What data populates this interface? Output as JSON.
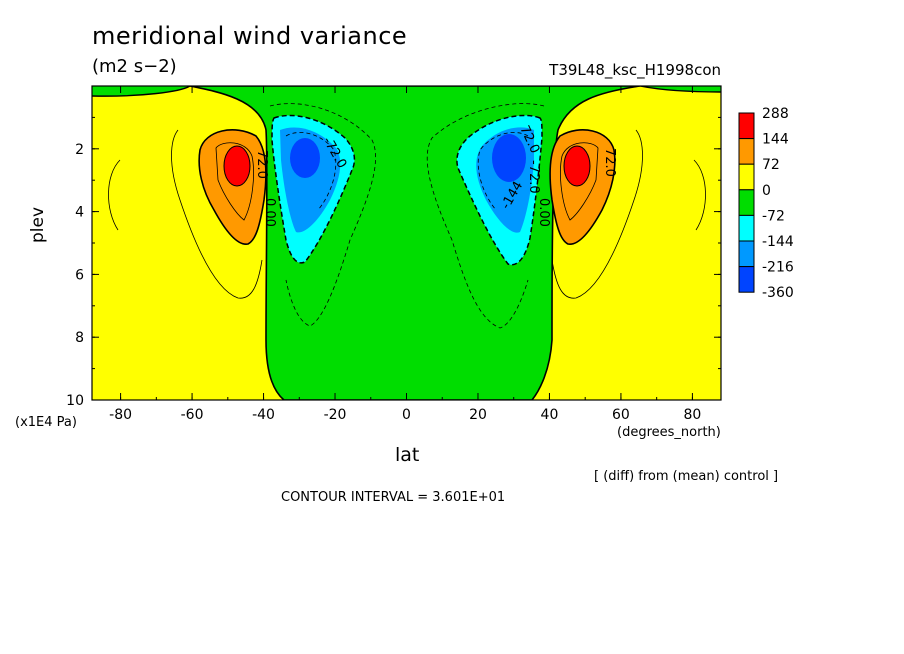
{
  "chart_data": {
    "type": "heatmap",
    "title": "meridional wind variance",
    "units": "(m2 s−2)",
    "run_label": "T39L48_ksc_H1998con",
    "xlabel": "lat",
    "x_units": "(degrees_north)",
    "ylabel": "plev",
    "y_units": "(x1E4 Pa)",
    "xlim": [
      -88,
      88
    ],
    "ylim": [
      10,
      0
    ],
    "x_ticks": [
      "-80",
      "-60",
      "-40",
      "-20",
      "0",
      "20",
      "40",
      "60",
      "80"
    ],
    "x_tick_values": [
      -80,
      -60,
      -40,
      -20,
      0,
      20,
      40,
      60,
      80
    ],
    "y_ticks": [
      "2",
      "4",
      "6",
      "8",
      "10"
    ],
    "y_tick_values": [
      2,
      4,
      6,
      8,
      10
    ],
    "note": "[ (diff) from (mean) control ]",
    "contour_interval": "CONTOUR INTERVAL = 3.601E+01",
    "contour_labels": [
      "72.0",
      "0.00",
      "-72.0",
      "72.0",
      "0.00",
      "-144",
      "-72.0",
      "72.0"
    ],
    "colorbar": {
      "labels": [
        "288",
        "144",
        "72",
        "0",
        "-72",
        "-144",
        "-216",
        "-360"
      ],
      "colors": [
        "#ff0000",
        "#ff9900",
        "#ffff00",
        "#00dd00",
        "#00ffff",
        "#0099ff",
        "#0044ff"
      ]
    },
    "features": [
      {
        "name": "positive maximum south",
        "lat": -47,
        "plev": 2.6,
        "value": 288
      },
      {
        "name": "negative minimum south",
        "lat": -29,
        "plev": 2.4,
        "value": -360
      },
      {
        "name": "negative minimum north",
        "lat": 29,
        "plev": 2.4,
        "value": -360
      },
      {
        "name": "positive maximum north",
        "lat": 47,
        "plev": 2.6,
        "value": 288
      }
    ]
  }
}
